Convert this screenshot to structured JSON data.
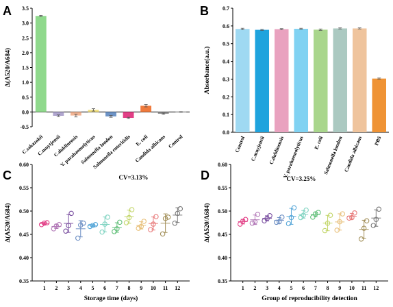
{
  "chart_data": [
    {
      "panel": "A",
      "type": "bar",
      "ylabel": "Δ(A520/A684)",
      "ylim": [
        -0.5,
        3.5
      ],
      "yticks": [
        -0.5,
        0.0,
        0.5,
        1.0,
        1.5,
        2.0,
        2.5,
        3.0,
        3.5
      ],
      "ytick_labels": [
        "-0.5",
        "0.0",
        "0.5",
        "1.0",
        "1.5",
        "2.0",
        "2.5",
        "3.0",
        "3.5"
      ],
      "categories": [
        "C.sakazakii",
        "C.muytjensii",
        "C.dublinensis",
        "V. parahaemolyticus",
        "Salmonella london",
        "Salmonella enteritidis",
        "E. coli",
        "Candida albicans",
        "Control"
      ],
      "values": [
        3.24,
        -0.13,
        -0.12,
        0.07,
        -0.15,
        -0.2,
        0.21,
        -0.06,
        0.0
      ],
      "errors": [
        0.02,
        0.03,
        0.05,
        0.04,
        0.03,
        0.02,
        0.04,
        0.02,
        0.01
      ],
      "colors": [
        "#8fd98c",
        "#b0a6cf",
        "#f2b493",
        "#f2e07c",
        "#6d93c6",
        "#e23f86",
        "#f07a3c",
        "#8f8f8f",
        "#c9c9c9"
      ]
    },
    {
      "panel": "B",
      "type": "bar",
      "ylabel": "Absorbance(a.u.)",
      "ylim": [
        0.0,
        0.7
      ],
      "yticks": [
        0.0,
        0.1,
        0.2,
        0.3,
        0.4,
        0.5,
        0.6,
        0.7
      ],
      "ytick_labels": [
        "0.0",
        "0.1",
        "0.2",
        "0.3",
        "0.4",
        "0.5",
        "0.6",
        "0.7"
      ],
      "categories": [
        "Control",
        "C.muyjensii",
        "C.dublinensis",
        "V. parahaemolyticus",
        "E. coli",
        "Salmonella london",
        "Candida albicans",
        "PBS"
      ],
      "values": [
        0.583,
        0.578,
        0.582,
        0.584,
        0.579,
        0.586,
        0.586,
        0.303
      ],
      "errors": [
        0.004,
        0.003,
        0.003,
        0.003,
        0.004,
        0.003,
        0.003,
        0.003
      ],
      "colors": [
        "#9fd9f2",
        "#1fa3dd",
        "#e9a2bf",
        "#80d2f2",
        "#a9d68c",
        "#abc9c1",
        "#efc49d",
        "#ef9335"
      ]
    },
    {
      "panel": "C",
      "type": "scatter",
      "annotation": "CV=3.13%",
      "xlabel": "Storage time (days)",
      "ylabel": "Δ(A520/A684)",
      "ylim": [
        0.35,
        0.6
      ],
      "yticks": [
        0.35,
        0.4,
        0.45,
        0.5,
        0.55,
        0.6
      ],
      "ytick_labels": [
        "0.35",
        "0.40",
        "0.45",
        "0.50",
        "0.55",
        "0.60"
      ],
      "x": [
        1,
        2,
        3,
        4,
        5,
        6,
        7,
        8,
        9,
        10,
        11,
        12
      ],
      "points": [
        [
          0.471,
          0.475,
          0.474
        ],
        [
          0.462,
          0.468,
          0.471
        ],
        [
          0.457,
          0.469,
          0.495
        ],
        [
          0.442,
          0.47,
          0.474
        ],
        [
          0.467,
          0.469,
          0.471
        ],
        [
          0.455,
          0.472,
          0.487
        ],
        [
          0.456,
          0.462,
          0.476
        ],
        [
          0.475,
          0.486,
          0.503
        ],
        [
          0.463,
          0.467,
          0.478
        ],
        [
          0.46,
          0.472,
          0.488
        ],
        [
          0.451,
          0.484,
          0.487
        ],
        [
          0.474,
          0.495,
          0.505
        ]
      ],
      "colors": [
        "#e23f86",
        "#b37ab8",
        "#7a4fa0",
        "#6d8fc4",
        "#59a8d9",
        "#7fd3c1",
        "#63c07a",
        "#c3d66a",
        "#e8c07a",
        "#e87a7a",
        "#a3905a",
        "#7a7a7a"
      ]
    },
    {
      "panel": "D",
      "type": "scatter",
      "annotation": "CV=3.25%",
      "xlabel": "Group of reproducibility detection",
      "ylabel": "Δ(A520/A684)",
      "ylim": [
        0.35,
        0.6
      ],
      "yticks": [
        0.35,
        0.4,
        0.45,
        0.5,
        0.55,
        0.6
      ],
      "ytick_labels": [
        "0.35",
        "0.40",
        "0.45",
        "0.50",
        "0.55",
        "0.60"
      ],
      "x": [
        1,
        2,
        3,
        4,
        5,
        6,
        7,
        8,
        9,
        10,
        11,
        12
      ],
      "points": [
        [
          0.472,
          0.478,
          0.482
        ],
        [
          0.474,
          0.477,
          0.493
        ],
        [
          0.479,
          0.484,
          0.49
        ],
        [
          0.476,
          0.477,
          0.487
        ],
        [
          0.473,
          0.486,
          0.507
        ],
        [
          0.486,
          0.491,
          0.502
        ],
        [
          0.487,
          0.494,
          0.497
        ],
        [
          0.458,
          0.474,
          0.491
        ],
        [
          0.459,
          0.477,
          0.494
        ],
        [
          0.485,
          0.486,
          0.496
        ],
        [
          0.44,
          0.463,
          0.479
        ],
        [
          0.469,
          0.482,
          0.504
        ]
      ],
      "colors": [
        "#e23f86",
        "#b37ab8",
        "#7a4fa0",
        "#6d8fc4",
        "#59a8d9",
        "#7fd3c1",
        "#63c07a",
        "#c3d66a",
        "#e8c07a",
        "#e87a7a",
        "#a3905a",
        "#7a7a7a"
      ]
    }
  ]
}
